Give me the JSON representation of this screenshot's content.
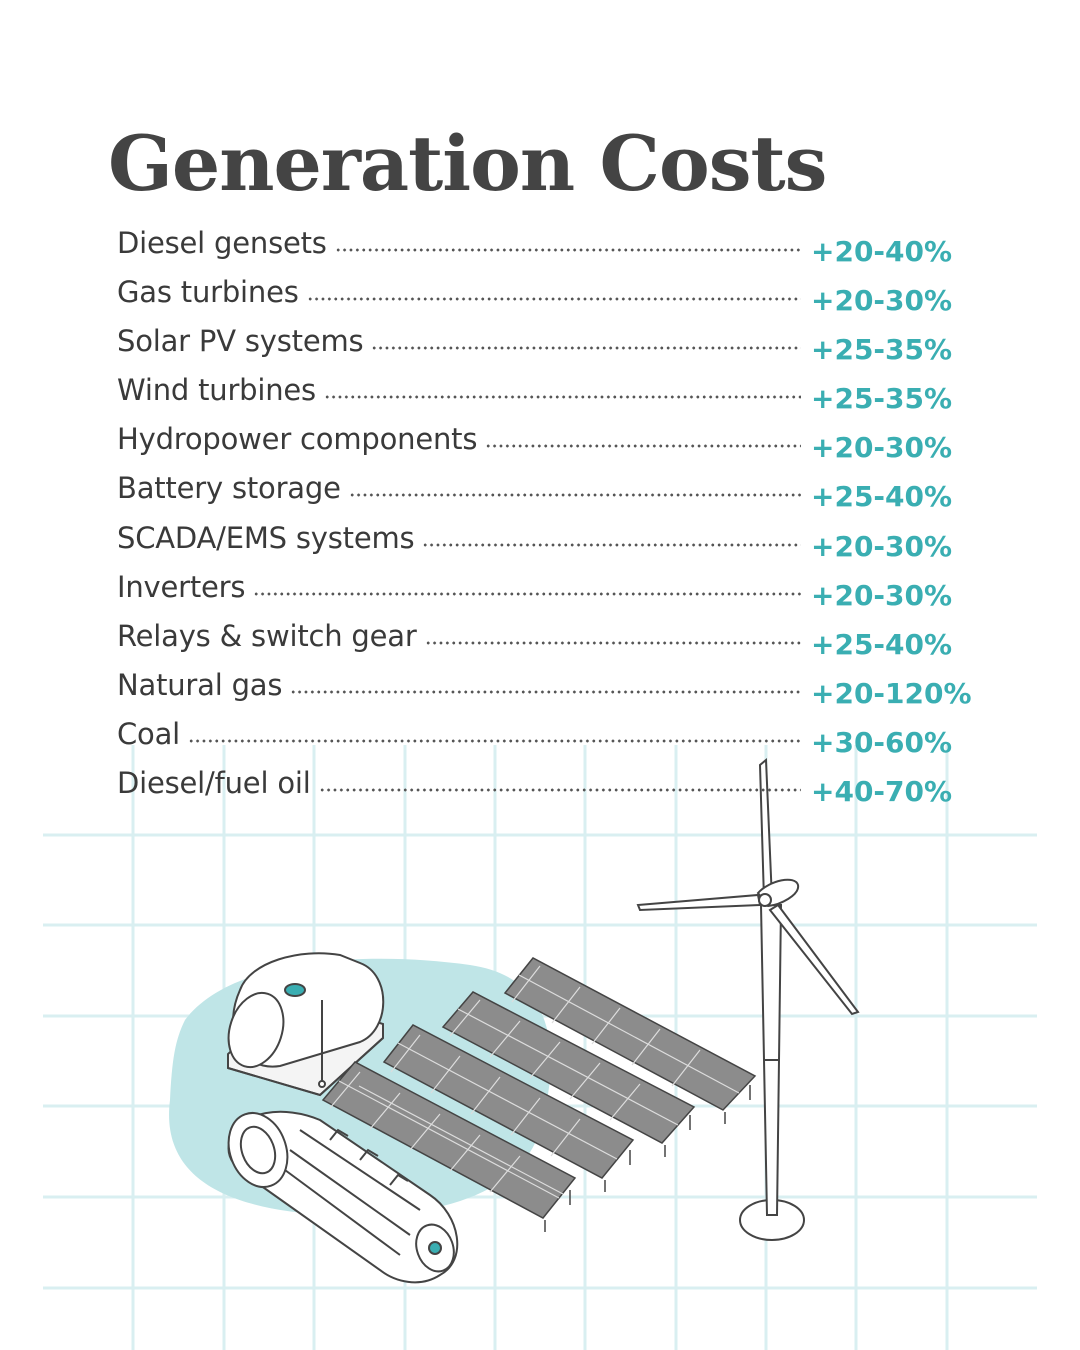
{
  "title": "Generation Costs",
  "colors": {
    "accent": "#3aaeb2",
    "text": "#3a3a3a",
    "title": "#444444",
    "grid": "#d6eef0",
    "blob": "#bfe5e7"
  },
  "rows": [
    {
      "label": "Diesel gensets",
      "value": "+20-40%"
    },
    {
      "label": "Gas turbines",
      "value": "+20-30%"
    },
    {
      "label": "Solar PV systems",
      "value": "+25-35%"
    },
    {
      "label": "Wind turbines",
      "value": "+25-35%"
    },
    {
      "label": "Hydropower components",
      "value": "+20-30%"
    },
    {
      "label": "Battery storage",
      "value": "+25-40%"
    },
    {
      "label": "SCADA/EMS systems",
      "value": "+20-30%"
    },
    {
      "label": "Inverters",
      "value": "+20-30%"
    },
    {
      "label": "Relays & switch gear",
      "value": "+25-40%"
    },
    {
      "label": "Natural gas",
      "value": "+20-120%"
    },
    {
      "label": "Coal",
      "value": "+30-60%"
    },
    {
      "label": "Diesel/fuel oil",
      "value": "+40-70%"
    }
  ],
  "illustration": {
    "icons": [
      "fuel-tank-icon",
      "gas-turbine-icon",
      "solar-panel-array-icon",
      "wind-turbine-icon"
    ]
  }
}
